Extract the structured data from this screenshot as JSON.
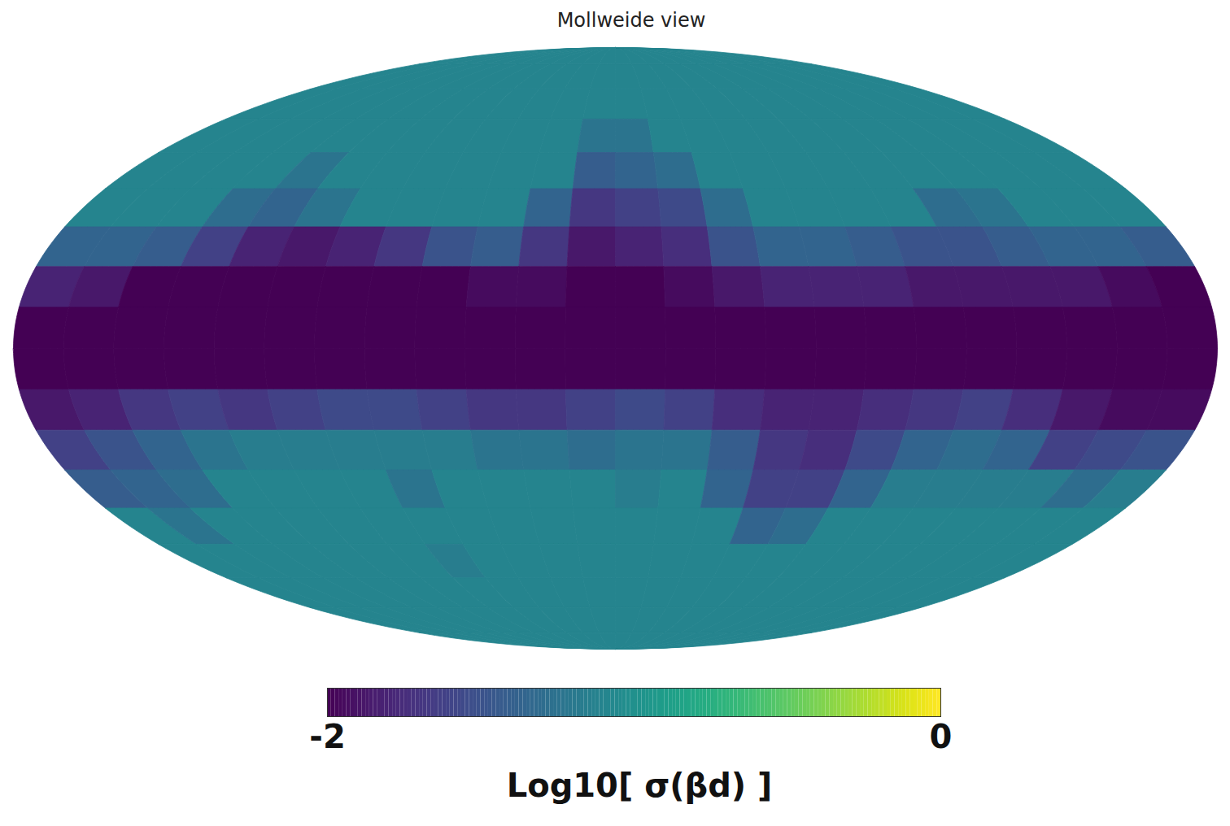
{
  "chart_data": {
    "type": "heatmap",
    "title": "Mollweide view",
    "color": "viridis",
    "lon_edges": [
      180,
      165,
      150,
      135,
      120,
      105,
      90,
      75,
      60,
      45,
      30,
      15,
      0,
      -15,
      -30,
      -45,
      -60,
      -75,
      -90,
      -105,
      -120,
      -135,
      -150,
      -165,
      -180
    ],
    "lat_edges": [
      90,
      80,
      70,
      60,
      50,
      40,
      30,
      20,
      10,
      0,
      -10,
      -20,
      -30,
      -40,
      -50,
      -60,
      -70,
      -80,
      -90
    ],
    "values": [
      [
        -1.1,
        -1.1,
        -1.1,
        -1.1,
        -1.1,
        -1.1,
        -1.1,
        -1.1,
        -1.1,
        -1.1,
        -1.1,
        -1.1,
        -1.1,
        -1.1,
        -1.1,
        -1.1,
        -1.1,
        -1.1,
        -1.1,
        -1.1,
        -1.1,
        -1.1,
        -1.1,
        -1.1
      ],
      [
        -1.1,
        -1.1,
        -1.1,
        -1.1,
        -1.1,
        -1.1,
        -1.1,
        -1.1,
        -1.1,
        -1.1,
        -1.1,
        -1.1,
        -1.1,
        -1.1,
        -1.1,
        -1.1,
        -1.1,
        -1.1,
        -1.1,
        -1.1,
        -1.1,
        -1.1,
        -1.1,
        -1.1
      ],
      [
        -1.1,
        -1.1,
        -1.1,
        -1.1,
        -1.1,
        -1.1,
        -1.1,
        -1.1,
        -1.1,
        -1.1,
        -1.1,
        -1.1,
        -1.1,
        -1.1,
        -1.1,
        -1.1,
        -1.1,
        -1.1,
        -1.1,
        -1.1,
        -1.1,
        -1.1,
        -1.1,
        -1.1
      ],
      [
        -1.1,
        -1.1,
        -1.1,
        -1.1,
        -1.1,
        -1.1,
        -1.1,
        -1.1,
        -1.1,
        -1.1,
        -1.1,
        -1.23,
        -1.23,
        -1.1,
        -1.1,
        -1.1,
        -1.1,
        -1.1,
        -1.1,
        -1.1,
        -1.1,
        -1.1,
        -1.1,
        -1.1
      ],
      [
        -1.1,
        -1.1,
        -1.1,
        -1.1,
        -1.23,
        -1.1,
        -1.1,
        -1.1,
        -1.1,
        -1.1,
        -1.1,
        -1.42,
        -1.36,
        -1.29,
        -1.1,
        -1.1,
        -1.1,
        -1.1,
        -1.1,
        -1.1,
        -1.1,
        -1.1,
        -1.1,
        -1.1
      ],
      [
        -1.1,
        -1.1,
        -1.1,
        -1.29,
        -1.36,
        -1.23,
        -1.1,
        -1.1,
        -1.1,
        -1.1,
        -1.36,
        -1.68,
        -1.61,
        -1.55,
        -1.29,
        -1.1,
        -1.1,
        -1.1,
        -1.1,
        -1.29,
        -1.23,
        -1.1,
        -1.1,
        -1.1
      ],
      [
        -1.36,
        -1.36,
        -1.42,
        -1.61,
        -1.81,
        -1.87,
        -1.81,
        -1.68,
        -1.49,
        -1.42,
        -1.68,
        -1.87,
        -1.81,
        -1.74,
        -1.49,
        -1.36,
        -1.36,
        -1.42,
        -1.49,
        -1.49,
        -1.42,
        -1.36,
        -1.36,
        -1.42
      ],
      [
        -1.81,
        -1.87,
        -2,
        -2,
        -2,
        -2,
        -2,
        -2,
        -2,
        -1.94,
        -1.94,
        -2,
        -2,
        -1.94,
        -1.87,
        -1.81,
        -1.81,
        -1.81,
        -1.87,
        -1.87,
        -1.87,
        -1.87,
        -1.94,
        -2
      ],
      [
        -2,
        -2,
        -2,
        -2,
        -2,
        -2,
        -2,
        -2,
        -2,
        -2,
        -2,
        -2,
        -2,
        -2,
        -2,
        -2,
        -2,
        -2,
        -2,
        -2,
        -2,
        -2,
        -2,
        -2
      ],
      [
        -2,
        -2,
        -2,
        -2,
        -2,
        -2,
        -2,
        -2,
        -2,
        -2,
        -2,
        -2,
        -2,
        -2,
        -2,
        -2,
        -2,
        -2,
        -2,
        -2,
        -2,
        -2,
        -2,
        -2
      ],
      [
        -1.87,
        -1.81,
        -1.68,
        -1.61,
        -1.68,
        -1.61,
        -1.55,
        -1.55,
        -1.61,
        -1.68,
        -1.68,
        -1.61,
        -1.55,
        -1.61,
        -1.74,
        -1.81,
        -1.81,
        -1.74,
        -1.68,
        -1.61,
        -1.74,
        -1.87,
        -1.94,
        -1.94
      ],
      [
        -1.61,
        -1.49,
        -1.36,
        -1.23,
        -1.16,
        -1.16,
        -1.16,
        -1.16,
        -1.16,
        -1.23,
        -1.23,
        -1.29,
        -1.23,
        -1.23,
        -1.42,
        -1.68,
        -1.74,
        -1.55,
        -1.36,
        -1.29,
        -1.36,
        -1.61,
        -1.55,
        -1.49
      ],
      [
        -1.42,
        -1.36,
        -1.29,
        -1.1,
        -1.1,
        -1.1,
        -1.1,
        -1.23,
        -1.1,
        -1.1,
        -1.1,
        -1.1,
        -1.16,
        -1.1,
        -1.36,
        -1.61,
        -1.61,
        -1.36,
        -1.16,
        -1.16,
        -1.16,
        -1.16,
        -1.29,
        -1.16
      ],
      [
        -1.1,
        -1.23,
        -1.1,
        -1.1,
        -1.1,
        -1.1,
        -1.1,
        -1.1,
        -1.1,
        -1.1,
        -1.1,
        -1.1,
        -1.1,
        -1.1,
        -1.1,
        -1.36,
        -1.29,
        -1.1,
        -1.1,
        -1.1,
        -1.1,
        -1.1,
        -1.1,
        -1.1
      ],
      [
        -1.1,
        -1.1,
        -1.1,
        -1.1,
        -1.1,
        -1.1,
        -1.1,
        -1.16,
        -1.1,
        -1.1,
        -1.1,
        -1.1,
        -1.1,
        -1.1,
        -1.1,
        -1.1,
        -1.1,
        -1.1,
        -1.1,
        -1.1,
        -1.1,
        -1.1,
        -1.1,
        -1.1
      ],
      [
        -1.1,
        -1.1,
        -1.1,
        -1.1,
        -1.1,
        -1.1,
        -1.1,
        -1.1,
        -1.1,
        -1.1,
        -1.1,
        -1.1,
        -1.1,
        -1.1,
        -1.1,
        -1.1,
        -1.1,
        -1.1,
        -1.1,
        -1.1,
        -1.1,
        -1.1,
        -1.1,
        -1.1
      ],
      [
        -1.1,
        -1.1,
        -1.1,
        -1.1,
        -1.1,
        -1.1,
        -1.1,
        -1.1,
        -1.1,
        -1.1,
        -1.1,
        -1.1,
        -1.1,
        -1.1,
        -1.1,
        -1.1,
        -1.1,
        -1.1,
        -1.1,
        -1.1,
        -1.1,
        -1.1,
        -1.1,
        -1.1
      ],
      [
        -1.1,
        -1.1,
        -1.1,
        -1.1,
        -1.1,
        -1.1,
        -1.1,
        -1.1,
        -1.1,
        -1.1,
        -1.1,
        -1.1,
        -1.1,
        -1.1,
        -1.1,
        -1.1,
        -1.1,
        -1.1,
        -1.1,
        -1.1,
        -1.1,
        -1.1,
        -1.1,
        -1.1
      ]
    ],
    "colorbar": {
      "label": "Log10[ σ(βd) ]",
      "range": [
        -2,
        0
      ],
      "ticks": [
        -2,
        0
      ]
    }
  }
}
